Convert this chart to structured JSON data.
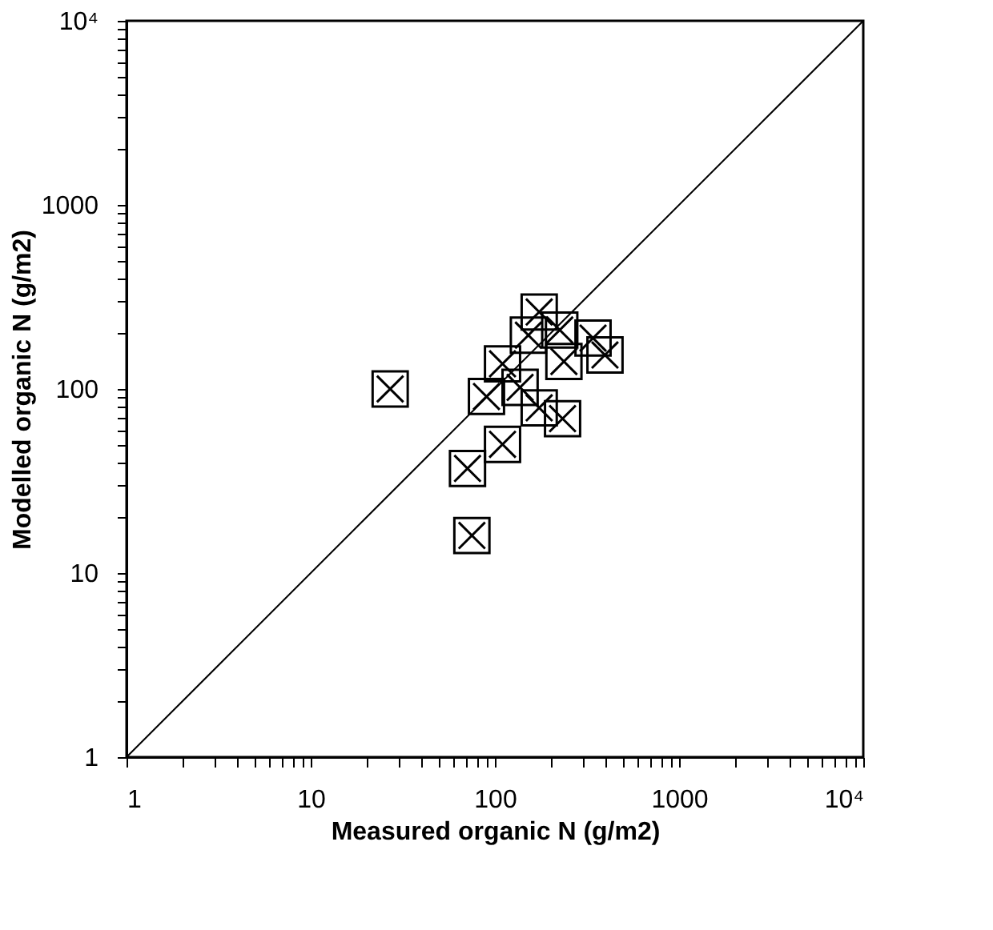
{
  "chart_data": {
    "type": "scatter",
    "xlabel": "Measured organic N (g/m2)",
    "ylabel": "Modelled organic N (g/m2)",
    "log": "xy",
    "marker": "cross",
    "grid": false,
    "xlim": [
      1,
      10000
    ],
    "ylim": [
      1,
      10000
    ],
    "xticks": [
      1,
      {
        "value": 2,
        "label": null
      },
      {
        "value": 3,
        "label": null
      },
      {
        "value": 4,
        "label": null
      },
      {
        "value": 5,
        "label": null
      },
      {
        "value": 6,
        "label": null
      },
      {
        "value": 7,
        "label": null
      },
      {
        "value": 8,
        "label": null
      },
      {
        "value": 9,
        "label": null
      },
      10,
      {
        "value": 20,
        "label": null
      },
      {
        "value": 30,
        "label": null
      },
      {
        "value": 40,
        "label": null
      },
      {
        "value": 50,
        "label": null
      },
      {
        "value": 60,
        "label": null
      },
      {
        "value": 70,
        "label": null
      },
      {
        "value": 80,
        "label": null
      },
      {
        "value": 90,
        "label": null
      },
      100,
      {
        "value": 200,
        "label": null
      },
      {
        "value": 300,
        "label": null
      },
      {
        "value": 400,
        "label": null
      },
      {
        "value": 500,
        "label": null
      },
      {
        "value": 600,
        "label": null
      },
      {
        "value": 700,
        "label": null
      },
      {
        "value": 800,
        "label": null
      },
      {
        "value": 900,
        "label": null
      },
      1000,
      {
        "value": 2000,
        "label": null
      },
      {
        "value": 3000,
        "label": null
      },
      {
        "value": 4000,
        "label": null
      },
      {
        "value": 5000,
        "label": null
      },
      {
        "value": 6000,
        "label": null
      },
      {
        "value": 7000,
        "label": null
      },
      {
        "value": 8000,
        "label": null
      },
      {
        "value": 9000,
        "label": null
      },
      {
        "value": 10000,
        "label": "10⁴"
      }
    ],
    "yticks": [
      1,
      {
        "value": 2,
        "label": null
      },
      {
        "value": 3,
        "label": null
      },
      {
        "value": 4,
        "label": null
      },
      {
        "value": 5,
        "label": null
      },
      {
        "value": 6,
        "label": null
      },
      {
        "value": 7,
        "label": null
      },
      {
        "value": 8,
        "label": null
      },
      {
        "value": 9,
        "label": null
      },
      10,
      {
        "value": 20,
        "label": null
      },
      {
        "value": 30,
        "label": null
      },
      {
        "value": 40,
        "label": null
      },
      {
        "value": 50,
        "label": null
      },
      {
        "value": 60,
        "label": null
      },
      {
        "value": 70,
        "label": null
      },
      {
        "value": 80,
        "label": null
      },
      {
        "value": 90,
        "label": null
      },
      100,
      {
        "value": 200,
        "label": null
      },
      {
        "value": 300,
        "label": null
      },
      {
        "value": 400,
        "label": null
      },
      {
        "value": 500,
        "label": null
      },
      {
        "value": 600,
        "label": null
      },
      {
        "value": 700,
        "label": null
      },
      {
        "value": 800,
        "label": null
      },
      {
        "value": 900,
        "label": null
      },
      1000,
      {
        "value": 2000,
        "label": null
      },
      {
        "value": 3000,
        "label": null
      },
      {
        "value": 4000,
        "label": null
      },
      {
        "value": 5000,
        "label": null
      },
      {
        "value": 6000,
        "label": null
      },
      {
        "value": 7000,
        "label": null
      },
      {
        "value": 8000,
        "label": null
      },
      {
        "value": 9000,
        "label": null
      },
      {
        "value": 10000,
        "label": "10⁴"
      }
    ],
    "series": [
      {
        "color": "#000000",
        "x": [
          27,
          174,
          152,
          225,
          341,
          396,
          237,
          110,
          137,
          90,
          174,
          233,
          110,
          71,
          75
        ],
        "values": [
          100,
          262,
          196,
          209,
          189,
          153,
          141,
          137,
          102,
          91,
          79,
          69,
          50,
          37,
          16
        ]
      },
      {
        "type": "line",
        "color": "#000000",
        "marker": "none",
        "x": [
          1,
          10000
        ],
        "values": [
          1,
          10000
        ]
      }
    ]
  }
}
